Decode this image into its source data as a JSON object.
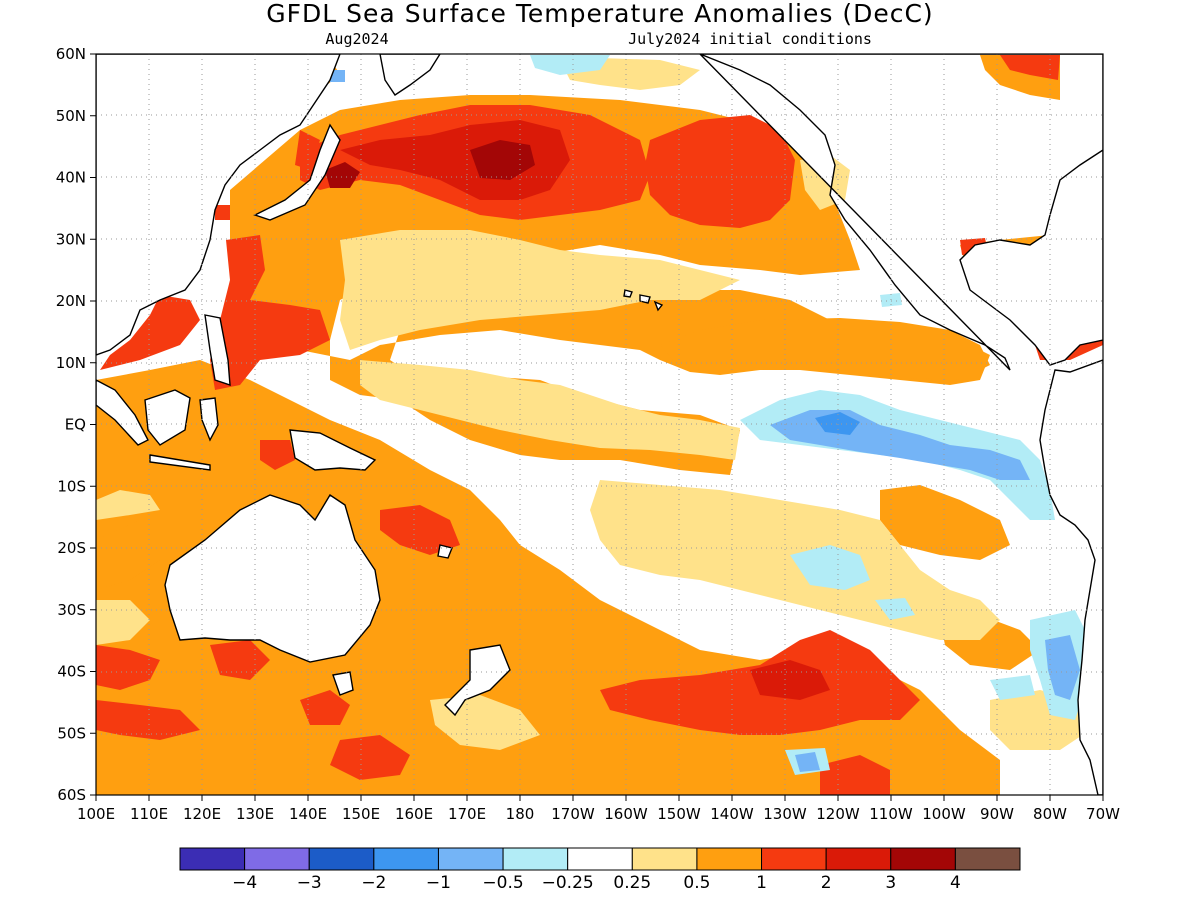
{
  "title": "GFDL Sea Surface Temperature Anomalies (DecC)",
  "subtitle_left": "Aug2024",
  "subtitle_right": "July2024 initial conditions",
  "lat_labels": [
    "60N",
    "50N",
    "40N",
    "30N",
    "20N",
    "10N",
    "EQ",
    "10S",
    "20S",
    "30S",
    "40S",
    "50S",
    "60S"
  ],
  "lon_labels": [
    "100E",
    "110E",
    "120E",
    "130E",
    "140E",
    "150E",
    "160E",
    "170E",
    "180",
    "170W",
    "160W",
    "150W",
    "140W",
    "130W",
    "120W",
    "110W",
    "100W",
    "90W",
    "80W",
    "70W"
  ],
  "colorbar": {
    "colors": [
      "#3b2db4",
      "#7f6be6",
      "#1c5cc8",
      "#3d96f0",
      "#74b4f6",
      "#b2ecf6",
      "#ffffff",
      "#ffe28a",
      "#ff9f10",
      "#f53a10",
      "#da1a08",
      "#a30606",
      "#7a4f40"
    ],
    "labels": [
      "−4",
      "−3",
      "−2",
      "−1",
      "−0.5",
      "−0.25",
      "0.25",
      "0.5",
      "1",
      "2",
      "3",
      "4"
    ]
  },
  "colors": {
    "ocean": "#ffffff",
    "anomaly_weak_positive": "#ffe28a",
    "anomaly_moderate_positive": "#ff9f10",
    "anomaly_strong_positive": "#f53a10",
    "anomaly_very_strong_positive": "#da1a08",
    "anomaly_extreme_positive": "#a30606",
    "anomaly_weak_negative": "#b2ecf6",
    "anomaly_moderate_negative": "#74b4f6",
    "anomaly_strong_negative": "#3d96f0",
    "coastline": "#000000",
    "gridline": "#aaaaaa"
  },
  "chart_data": {
    "type": "heatmap",
    "title": "GFDL Sea Surface Temperature Anomalies (DecC)",
    "forecast_month": "Aug2024",
    "initial_conditions": "July2024 initial conditions",
    "lat_range": [
      -60,
      60
    ],
    "lon_range": [
      100,
      290
    ],
    "units": "DecC",
    "contour_levels": [
      -4,
      -3,
      -2,
      -1,
      -0.5,
      -0.25,
      0.25,
      0.5,
      1,
      2,
      3,
      4
    ],
    "grid": true
  }
}
